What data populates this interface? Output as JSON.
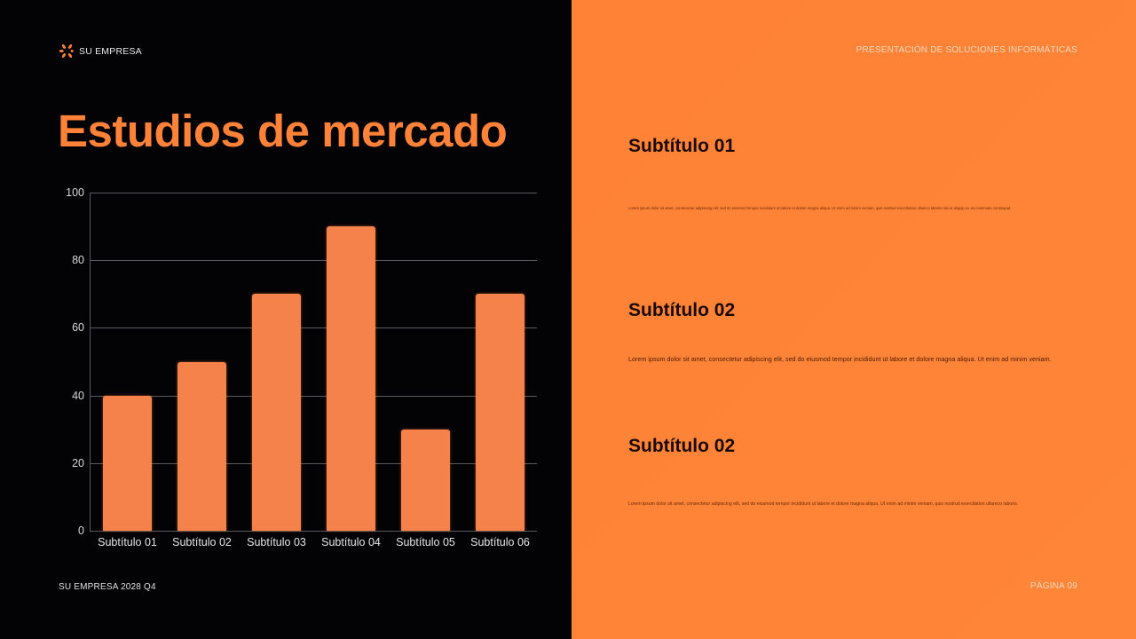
{
  "brand": {
    "name": "SU EMPRESA",
    "icon": "burst-logo-icon",
    "accent": "#ff8238"
  },
  "header": {
    "presentation_title": "PRESENTACIÓN DE SOLUCIONES INFORMÁTICAS"
  },
  "title": "Estudios de mercado",
  "sections": [
    {
      "heading": "Subtítulo 01",
      "text": "Lorem ipsum dolor sit amet, consectetur adipiscing elit, sed do eiusmod tempor incididunt ut labore et dolore magna aliqua. Ut enim ad minim veniam, quis nostrud exercitation ullamco laboris nisi ut aliquip ex ea commodo consequat."
    },
    {
      "heading": "Subtítulo 02",
      "text": "Lorem ipsum dolor sit amet, consectetur adipiscing elit, sed do eiusmod tempor incididunt ut labore et dolore magna aliqua. Ut enim ad minim veniam."
    },
    {
      "heading": "Subtítulo 02",
      "text": "Lorem ipsum dolor sit amet, consectetur adipiscing elit, sed do eiusmod tempor incididunt ut labore et dolore magna aliqua. Ut enim ad minim veniam, quis nostrud exercitation ullamco laboris."
    }
  ],
  "footer": {
    "left": "SU EMPRESA 2028 Q4",
    "right": "PÁGINA 09"
  },
  "chart_data": {
    "type": "bar",
    "title": "",
    "categories": [
      "Subtítulo 01",
      "Subtítulo 02",
      "Subtítulo 03",
      "Subtítulo 04",
      "Subtítulo 05",
      "Subtítulo 06"
    ],
    "values": [
      40,
      50,
      70,
      90,
      30,
      70
    ],
    "yticks": [
      "0",
      "20",
      "40",
      "60",
      "80",
      "100"
    ],
    "xlabel": "",
    "ylabel": "",
    "ylim": [
      0,
      100
    ],
    "grid": true,
    "legend": null,
    "bar_color": "#f5824a"
  }
}
